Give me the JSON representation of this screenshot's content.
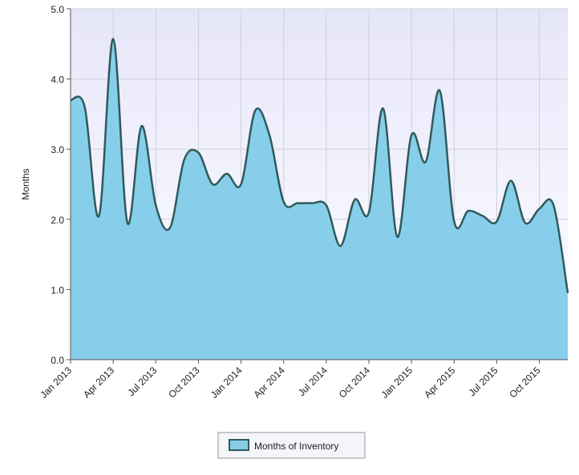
{
  "chart_data": {
    "type": "area",
    "y_label": "Months",
    "categories": [
      "Jan 2013",
      null,
      null,
      "Apr 2013",
      null,
      null,
      "Jul 2013",
      null,
      null,
      "Oct 2013",
      null,
      null,
      "Jan 2014",
      null,
      null,
      "Apr 2014",
      null,
      null,
      "Jul 2014",
      null,
      null,
      "Oct 2014",
      null,
      null,
      "Jan 2015",
      null,
      null,
      "Apr 2015",
      null,
      null,
      "Jul 2015",
      null,
      null,
      "Oct 2015",
      null,
      null
    ],
    "series": [
      {
        "name": "Months of Inventory",
        "color": "#87ceea",
        "line_color": "#2f5a5c",
        "values": [
          3.7,
          3.6,
          2.05,
          4.57,
          1.95,
          3.33,
          2.2,
          1.88,
          2.85,
          2.95,
          2.5,
          2.65,
          2.5,
          3.55,
          3.2,
          2.25,
          2.23,
          2.23,
          2.2,
          1.62,
          2.28,
          2.1,
          3.58,
          1.75,
          3.2,
          2.82,
          3.83,
          1.97,
          2.12,
          2.05,
          1.97,
          2.55,
          1.95,
          2.15,
          2.2,
          0.95
        ]
      }
    ],
    "ylim": [
      0,
      5
    ],
    "yticks": [
      {
        "value": 0,
        "label": "0.0"
      },
      {
        "value": 1,
        "label": "1.0"
      },
      {
        "value": 2,
        "label": "2.0"
      },
      {
        "value": 3,
        "label": "3.0"
      },
      {
        "value": 4,
        "label": "4.0"
      },
      {
        "value": 5,
        "label": "5.0"
      }
    ],
    "grid": true,
    "legend": "bottom"
  }
}
